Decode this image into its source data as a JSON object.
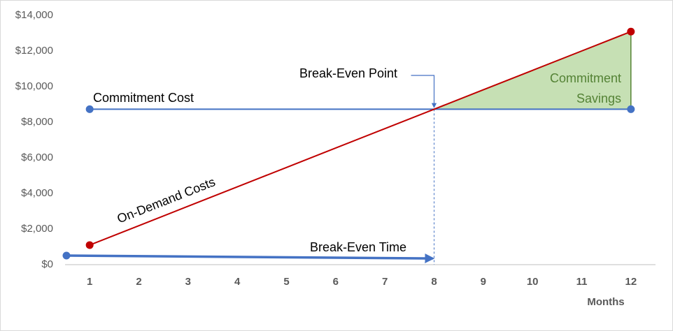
{
  "chart_data": {
    "type": "line",
    "x": [
      1,
      2,
      3,
      4,
      5,
      6,
      7,
      8,
      9,
      10,
      11,
      12
    ],
    "series": [
      {
        "name": "Commitment Cost",
        "color": "#4472c4",
        "markers": "ends",
        "values": [
          8730,
          8730,
          8730,
          8730,
          8730,
          8730,
          8730,
          8730,
          8730,
          8730,
          8730,
          8730
        ]
      },
      {
        "name": "On-Demand Costs",
        "color": "#c00000",
        "markers": "ends",
        "values": [
          1100,
          2190,
          3280,
          4370,
          5460,
          6550,
          7640,
          8730,
          9820,
          10910,
          12000,
          13090
        ]
      }
    ],
    "xlim": [
      0.5,
      12.5
    ],
    "xticks": [
      1,
      2,
      3,
      4,
      5,
      6,
      7,
      8,
      9,
      10,
      11,
      12
    ],
    "ylim": [
      0,
      14000
    ],
    "yticks": [
      {
        "value": 0,
        "label": "$0"
      },
      {
        "value": 2000,
        "label": "$2,000"
      },
      {
        "value": 4000,
        "label": "$4,000"
      },
      {
        "value": 6000,
        "label": "$6,000"
      },
      {
        "value": 8000,
        "label": "$8,000"
      },
      {
        "value": 10000,
        "label": "$10,000"
      },
      {
        "value": 12000,
        "label": "$12,000"
      },
      {
        "value": 14000,
        "label": "$14,000"
      }
    ],
    "xlabel": "Months",
    "annotations": {
      "break_even_point": {
        "label": "Break-Even Point",
        "x": 8
      },
      "break_even_time": {
        "label": "Break-Even Time",
        "x": [
          0.5,
          8
        ],
        "y": [
          510,
          350
        ],
        "color": "#4472c4"
      },
      "savings": {
        "label": [
          "Commitment",
          "Savings"
        ],
        "color": "#548235",
        "fill": "#c6e0b4",
        "from": 8
      }
    }
  }
}
